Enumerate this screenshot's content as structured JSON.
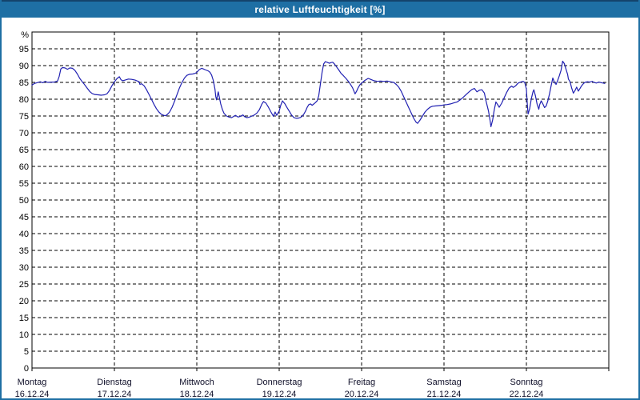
{
  "window": {
    "title": "relative Luftfeuchtigkeit [%]"
  },
  "colors": {
    "titlebar_bg": "#1e6fa4",
    "titlebar_top_edge": "#14436b",
    "titlebar_text": "#ffffff",
    "window_border": "#1e6fa4",
    "plot_bg": "#ffffff",
    "grid": "#000000",
    "axis": "#000000",
    "tick_text": "#000000",
    "day_text": "#10102a",
    "series_line": "#2121b2"
  },
  "chart_data": {
    "type": "line",
    "title": "relative Luftfeuchtigkeit [%]",
    "ylabel": "relative Luftfeuchtigkeit",
    "y_unit_label": "%",
    "ylim": [
      0,
      100
    ],
    "y_ticks": [
      0,
      5,
      10,
      15,
      20,
      25,
      30,
      35,
      40,
      45,
      50,
      55,
      60,
      65,
      70,
      75,
      80,
      85,
      90,
      95
    ],
    "grid": "dashed horizontal lines at every 5 %, dashed vertical lines at each day start",
    "legend": "none",
    "x_unit": "days since Montag 16.12.24 00:00",
    "x_days": [
      {
        "name": "Montag",
        "date": "16.12.24"
      },
      {
        "name": "Dienstag",
        "date": "17.12.24"
      },
      {
        "name": "Mittwoch",
        "date": "18.12.24"
      },
      {
        "name": "Donnerstag",
        "date": "19.12.24"
      },
      {
        "name": "Freitag",
        "date": "20.12.24"
      },
      {
        "name": "Samstag",
        "date": "21.12.24"
      },
      {
        "name": "Sonntag",
        "date": "22.12.24"
      }
    ],
    "series": [
      {
        "name": "relative Luftfeuchtigkeit [%]",
        "color": "#2121b2",
        "points": [
          [
            0.0,
            84.2
          ],
          [
            0.03,
            84.7
          ],
          [
            0.06,
            84.9
          ],
          [
            0.1,
            85.2
          ],
          [
            0.13,
            84.9
          ],
          [
            0.16,
            85.3
          ],
          [
            0.19,
            85.0
          ],
          [
            0.23,
            85.1
          ],
          [
            0.27,
            85.1
          ],
          [
            0.31,
            85.4
          ],
          [
            0.33,
            86.8
          ],
          [
            0.35,
            89.0
          ],
          [
            0.37,
            89.4
          ],
          [
            0.4,
            89.3
          ],
          [
            0.43,
            88.9
          ],
          [
            0.46,
            89.3
          ],
          [
            0.49,
            89.2
          ],
          [
            0.52,
            88.6
          ],
          [
            0.55,
            87.5
          ],
          [
            0.58,
            86.2
          ],
          [
            0.61,
            85.2
          ],
          [
            0.63,
            84.6
          ],
          [
            0.66,
            83.6
          ],
          [
            0.7,
            82.3
          ],
          [
            0.73,
            81.7
          ],
          [
            0.76,
            81.4
          ],
          [
            0.8,
            81.3
          ],
          [
            0.84,
            81.2
          ],
          [
            0.88,
            81.3
          ],
          [
            0.91,
            81.6
          ],
          [
            0.94,
            82.6
          ],
          [
            0.97,
            84.0
          ],
          [
            1.0,
            85.2
          ],
          [
            1.03,
            86.1
          ],
          [
            1.06,
            86.7
          ],
          [
            1.08,
            85.8
          ],
          [
            1.1,
            85.5
          ],
          [
            1.13,
            85.7
          ],
          [
            1.17,
            86.0
          ],
          [
            1.21,
            85.9
          ],
          [
            1.25,
            85.7
          ],
          [
            1.28,
            85.4
          ],
          [
            1.3,
            85.2
          ],
          [
            1.31,
            84.4
          ],
          [
            1.33,
            84.6
          ],
          [
            1.36,
            84.0
          ],
          [
            1.39,
            82.8
          ],
          [
            1.42,
            81.4
          ],
          [
            1.45,
            80.0
          ],
          [
            1.48,
            78.5
          ],
          [
            1.51,
            77.2
          ],
          [
            1.54,
            76.2
          ],
          [
            1.57,
            75.5
          ],
          [
            1.6,
            75.2
          ],
          [
            1.62,
            75.1
          ],
          [
            1.64,
            75.4
          ],
          [
            1.67,
            76.2
          ],
          [
            1.7,
            77.6
          ],
          [
            1.73,
            79.4
          ],
          [
            1.76,
            81.4
          ],
          [
            1.79,
            83.4
          ],
          [
            1.82,
            85.0
          ],
          [
            1.85,
            86.3
          ],
          [
            1.88,
            87.1
          ],
          [
            1.91,
            87.4
          ],
          [
            1.95,
            87.5
          ],
          [
            1.98,
            87.7
          ],
          [
            2.0,
            88.0
          ],
          [
            2.03,
            88.8
          ],
          [
            2.06,
            89.2
          ],
          [
            2.08,
            89.0
          ],
          [
            2.11,
            88.7
          ],
          [
            2.14,
            88.4
          ],
          [
            2.16,
            88.0
          ],
          [
            2.18,
            87.2
          ],
          [
            2.2,
            85.6
          ],
          [
            2.22,
            83.0
          ],
          [
            2.23,
            80.8
          ],
          [
            2.24,
            79.8
          ],
          [
            2.26,
            82.2
          ],
          [
            2.27,
            81.0
          ],
          [
            2.29,
            78.6
          ],
          [
            2.31,
            77.0
          ],
          [
            2.33,
            75.8
          ],
          [
            2.36,
            75.0
          ],
          [
            2.39,
            74.7
          ],
          [
            2.42,
            74.5
          ],
          [
            2.45,
            74.9
          ],
          [
            2.47,
            75.2
          ],
          [
            2.5,
            74.7
          ],
          [
            2.53,
            74.9
          ],
          [
            2.56,
            75.3
          ],
          [
            2.58,
            74.8
          ],
          [
            2.61,
            74.5
          ],
          [
            2.64,
            74.7
          ],
          [
            2.67,
            75.0
          ],
          [
            2.7,
            75.3
          ],
          [
            2.73,
            75.9
          ],
          [
            2.76,
            76.9
          ],
          [
            2.79,
            78.6
          ],
          [
            2.81,
            79.3
          ],
          [
            2.84,
            78.8
          ],
          [
            2.87,
            77.6
          ],
          [
            2.9,
            76.2
          ],
          [
            2.93,
            74.9
          ],
          [
            2.95,
            76.2
          ],
          [
            2.97,
            75.2
          ],
          [
            3.0,
            76.5
          ],
          [
            3.02,
            78.3
          ],
          [
            3.04,
            79.5
          ],
          [
            3.07,
            78.6
          ],
          [
            3.09,
            77.7
          ],
          [
            3.12,
            76.5
          ],
          [
            3.15,
            75.3
          ],
          [
            3.18,
            74.5
          ],
          [
            3.21,
            74.3
          ],
          [
            3.24,
            74.4
          ],
          [
            3.26,
            74.6
          ],
          [
            3.28,
            75.0
          ],
          [
            3.3,
            75.6
          ],
          [
            3.32,
            76.5
          ],
          [
            3.34,
            77.6
          ],
          [
            3.36,
            78.4
          ],
          [
            3.38,
            78.6
          ],
          [
            3.4,
            78.2
          ],
          [
            3.42,
            78.6
          ],
          [
            3.44,
            79.0
          ],
          [
            3.46,
            79.5
          ],
          [
            3.48,
            81.0
          ],
          [
            3.5,
            84.5
          ],
          [
            3.52,
            88.0
          ],
          [
            3.54,
            90.5
          ],
          [
            3.56,
            91.2
          ],
          [
            3.58,
            91.0
          ],
          [
            3.61,
            90.7
          ],
          [
            3.63,
            90.9
          ],
          [
            3.65,
            91.0
          ],
          [
            3.67,
            90.5
          ],
          [
            3.69,
            89.8
          ],
          [
            3.72,
            88.8
          ],
          [
            3.75,
            87.7
          ],
          [
            3.78,
            87.0
          ],
          [
            3.81,
            86.2
          ],
          [
            3.84,
            85.3
          ],
          [
            3.86,
            84.6
          ],
          [
            3.89,
            83.4
          ],
          [
            3.92,
            81.6
          ],
          [
            3.94,
            82.4
          ],
          [
            3.96,
            83.5
          ],
          [
            3.98,
            84.3
          ],
          [
            4.0,
            84.8
          ],
          [
            4.04,
            85.6
          ],
          [
            4.08,
            86.2
          ],
          [
            4.11,
            85.9
          ],
          [
            4.15,
            85.5
          ],
          [
            4.19,
            85.3
          ],
          [
            4.23,
            85.4
          ],
          [
            4.27,
            85.3
          ],
          [
            4.31,
            85.4
          ],
          [
            4.35,
            85.2
          ],
          [
            4.39,
            85.0
          ],
          [
            4.42,
            84.4
          ],
          [
            4.45,
            83.6
          ],
          [
            4.48,
            82.4
          ],
          [
            4.51,
            80.8
          ],
          [
            4.54,
            79.2
          ],
          [
            4.57,
            77.6
          ],
          [
            4.6,
            76.0
          ],
          [
            4.63,
            74.4
          ],
          [
            4.66,
            73.2
          ],
          [
            4.68,
            72.8
          ],
          [
            4.71,
            73.8
          ],
          [
            4.74,
            75.0
          ],
          [
            4.77,
            76.2
          ],
          [
            4.8,
            77.0
          ],
          [
            4.83,
            77.6
          ],
          [
            4.86,
            77.9
          ],
          [
            4.9,
            78.0
          ],
          [
            4.94,
            78.1
          ],
          [
            4.98,
            78.2
          ],
          [
            5.0,
            78.3
          ],
          [
            5.04,
            78.4
          ],
          [
            5.08,
            78.6
          ],
          [
            5.12,
            78.9
          ],
          [
            5.16,
            79.2
          ],
          [
            5.19,
            79.7
          ],
          [
            5.23,
            80.5
          ],
          [
            5.27,
            81.4
          ],
          [
            5.31,
            82.3
          ],
          [
            5.34,
            82.9
          ],
          [
            5.37,
            83.2
          ],
          [
            5.4,
            82.2
          ],
          [
            5.43,
            82.7
          ],
          [
            5.46,
            82.8
          ],
          [
            5.49,
            81.8
          ],
          [
            5.51,
            79.5
          ],
          [
            5.54,
            76.5
          ],
          [
            5.56,
            73.5
          ],
          [
            5.57,
            71.8
          ],
          [
            5.59,
            73.8
          ],
          [
            5.61,
            76.8
          ],
          [
            5.63,
            79.2
          ],
          [
            5.65,
            78.4
          ],
          [
            5.67,
            77.6
          ],
          [
            5.7,
            78.8
          ],
          [
            5.73,
            80.4
          ],
          [
            5.76,
            82.0
          ],
          [
            5.79,
            83.3
          ],
          [
            5.82,
            83.9
          ],
          [
            5.84,
            83.5
          ],
          [
            5.87,
            84.0
          ],
          [
            5.9,
            84.8
          ],
          [
            5.93,
            85.1
          ],
          [
            5.96,
            85.3
          ],
          [
            5.98,
            85.0
          ],
          [
            6.0,
            83.0
          ],
          [
            6.01,
            79.0
          ],
          [
            6.02,
            75.6
          ],
          [
            6.04,
            77.2
          ],
          [
            6.06,
            80.2
          ],
          [
            6.08,
            82.2
          ],
          [
            6.09,
            82.8
          ],
          [
            6.11,
            81.0
          ],
          [
            6.13,
            78.5
          ],
          [
            6.15,
            77.0
          ],
          [
            6.16,
            78.3
          ],
          [
            6.18,
            79.5
          ],
          [
            6.2,
            78.6
          ],
          [
            6.22,
            77.5
          ],
          [
            6.24,
            78.0
          ],
          [
            6.26,
            79.5
          ],
          [
            6.28,
            81.5
          ],
          [
            6.3,
            84.0
          ],
          [
            6.32,
            86.3
          ],
          [
            6.34,
            85.0
          ],
          [
            6.36,
            84.4
          ],
          [
            6.38,
            85.6
          ],
          [
            6.4,
            87.0
          ],
          [
            6.42,
            88.6
          ],
          [
            6.44,
            91.3
          ],
          [
            6.46,
            90.6
          ],
          [
            6.48,
            89.0
          ],
          [
            6.5,
            87.4
          ],
          [
            6.51,
            86.0
          ],
          [
            6.53,
            85.2
          ],
          [
            6.55,
            83.3
          ],
          [
            6.57,
            81.8
          ],
          [
            6.59,
            82.6
          ],
          [
            6.61,
            83.6
          ],
          [
            6.63,
            82.4
          ],
          [
            6.65,
            83.2
          ],
          [
            6.67,
            84.0
          ],
          [
            6.69,
            84.6
          ],
          [
            6.71,
            85.0
          ],
          [
            6.74,
            85.2
          ],
          [
            6.77,
            85.1
          ],
          [
            6.8,
            85.3
          ],
          [
            6.82,
            85.0
          ],
          [
            6.85,
            84.8
          ],
          [
            6.88,
            85.1
          ],
          [
            6.91,
            84.9
          ],
          [
            6.93,
            84.8
          ],
          [
            6.95,
            84.7
          ]
        ]
      }
    ]
  }
}
